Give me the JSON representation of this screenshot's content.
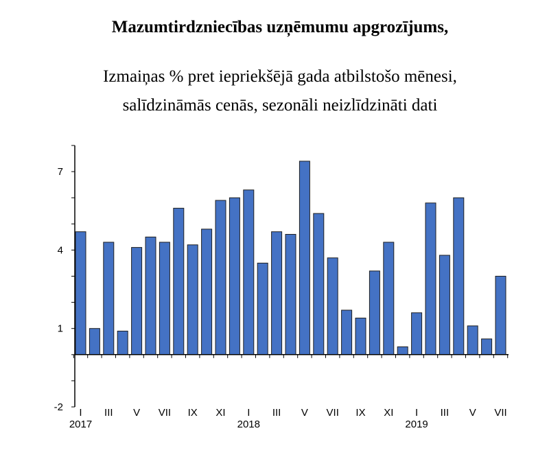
{
  "chart_data": {
    "type": "bar",
    "title": "Mazumtirdzniecības uzņēmumu apgrozījums,",
    "subtitle_lines": [
      "Izmaiņas % pret iepriekšējā gada atbilstošo mēnesi,",
      "salīdzināmās cenās, sezonāli neizlīdzināti dati"
    ],
    "xlabel": "",
    "ylabel": "",
    "ylim": [
      -2,
      8
    ],
    "yticks": [
      -2,
      1,
      4,
      7
    ],
    "grid": false,
    "bar_color": "#4472c4",
    "bar_stroke": "#1f1f1f",
    "categories": [
      "2017-01",
      "2017-02",
      "2017-03",
      "2017-04",
      "2017-05",
      "2017-06",
      "2017-07",
      "2017-08",
      "2017-09",
      "2017-10",
      "2017-11",
      "2017-12",
      "2018-01",
      "2018-02",
      "2018-03",
      "2018-04",
      "2018-05",
      "2018-06",
      "2018-07",
      "2018-08",
      "2018-09",
      "2018-10",
      "2018-11",
      "2018-12",
      "2019-01",
      "2019-02",
      "2019-03",
      "2019-04",
      "2019-05",
      "2019-06",
      "2019-07"
    ],
    "values": [
      4.7,
      1.0,
      4.3,
      0.9,
      4.1,
      4.5,
      4.3,
      5.6,
      4.2,
      4.8,
      5.9,
      6.0,
      6.3,
      3.5,
      4.7,
      4.6,
      7.4,
      5.4,
      3.7,
      1.7,
      1.4,
      3.2,
      4.3,
      0.3,
      1.6,
      5.8,
      3.8,
      6.0,
      1.1,
      0.6,
      3.0
    ],
    "month_labels": [
      "I",
      "III",
      "V",
      "VII",
      "IX",
      "XI",
      "I",
      "III",
      "V",
      "VII",
      "IX",
      "XI",
      "I",
      "III",
      "V",
      "VII"
    ],
    "year_labels": [
      "2017",
      "2018",
      "2019"
    ]
  }
}
